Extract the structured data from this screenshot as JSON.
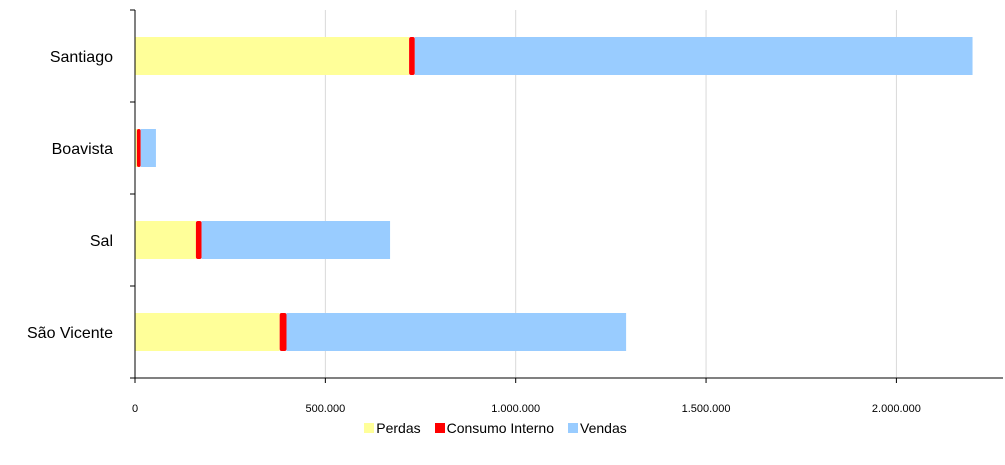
{
  "chart_data": {
    "type": "bar",
    "orientation": "horizontal",
    "stacked": true,
    "categories": [
      "Santiago",
      "Boavista",
      "Sal",
      "São Vicente"
    ],
    "series": [
      {
        "name": "Perdas",
        "values": [
          720000,
          5000,
          160000,
          380000
        ],
        "color": "#FFFF99"
      },
      {
        "name": "Consumo Interno",
        "values": [
          15000,
          10000,
          15000,
          18000
        ],
        "color": "#FF0000"
      },
      {
        "name": "Vendas",
        "values": [
          1465000,
          40000,
          495000,
          892000
        ],
        "color": "#99CCFF"
      }
    ],
    "x_ticks": [
      "0",
      "500.000",
      "1.000.000",
      "1.500.000",
      "2.000.000"
    ],
    "xlim": [
      0,
      2280000
    ],
    "xlabel": "",
    "ylabel": "",
    "title": "",
    "grid": "vertical",
    "legend_position": "bottom"
  }
}
